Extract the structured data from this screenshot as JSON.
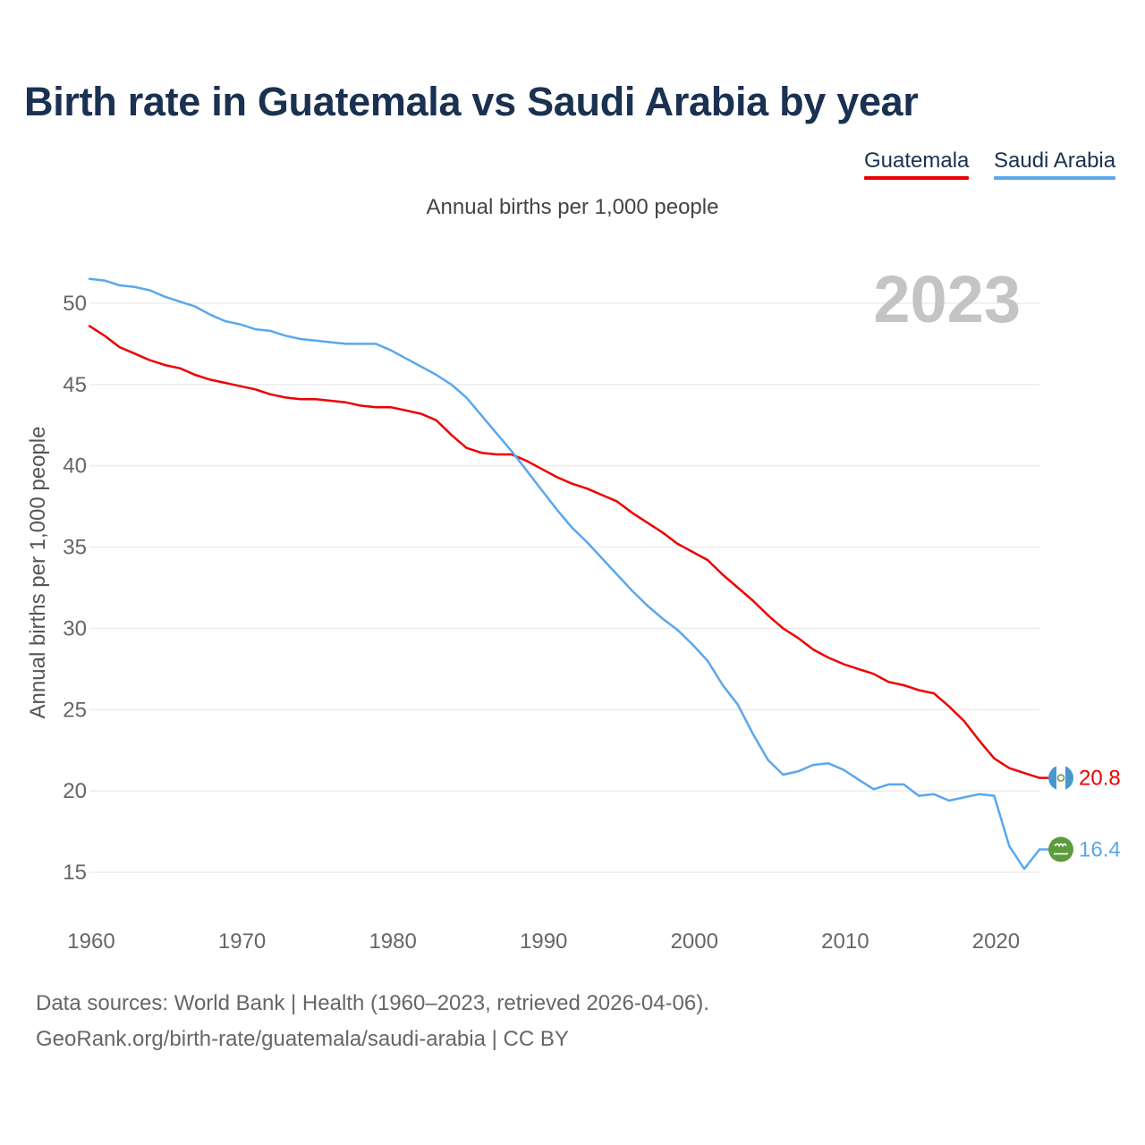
{
  "title": "Birth rate in Guatemala vs Saudi Arabia by year",
  "subtitle": "Annual births per 1,000 people",
  "legend": [
    {
      "name": "Guatemala",
      "color": "#ee0000"
    },
    {
      "name": "Saudi Arabia",
      "color": "#5aa7ec"
    }
  ],
  "footer": {
    "sources": "Data sources: World Bank | Health (1960–2023, retrieved 2026-04-06).",
    "url": "GeoRank.org/birth-rate/guatemala/saudi-arabia | CC BY"
  },
  "chart_data": {
    "type": "line",
    "year_label": "2023",
    "ylabel": "Annual births per 1,000 people",
    "xlabel": "",
    "xlim": [
      1960,
      2023
    ],
    "ylim": [
      12.5,
      52
    ],
    "yticks": [
      15,
      20,
      25,
      30,
      35,
      40,
      45,
      50
    ],
    "xticks": [
      1960,
      1970,
      1980,
      1990,
      2000,
      2010,
      2020
    ],
    "grid": true,
    "legend_position": "top-right",
    "x": [
      1960,
      1961,
      1962,
      1963,
      1964,
      1965,
      1966,
      1967,
      1968,
      1969,
      1970,
      1971,
      1972,
      1973,
      1974,
      1975,
      1976,
      1977,
      1978,
      1979,
      1980,
      1981,
      1982,
      1983,
      1984,
      1985,
      1986,
      1987,
      1988,
      1989,
      1990,
      1991,
      1992,
      1993,
      1994,
      1995,
      1996,
      1997,
      1998,
      1999,
      2000,
      2001,
      2002,
      2003,
      2004,
      2005,
      2006,
      2007,
      2008,
      2009,
      2010,
      2011,
      2012,
      2013,
      2014,
      2015,
      2016,
      2017,
      2018,
      2019,
      2020,
      2021,
      2022,
      2023
    ],
    "series": [
      {
        "name": "Guatemala",
        "color": "#ee0000",
        "end_label": "20.8",
        "values": [
          48.6,
          48.0,
          47.3,
          46.9,
          46.5,
          46.2,
          46.0,
          45.6,
          45.3,
          45.1,
          44.9,
          44.7,
          44.4,
          44.2,
          44.1,
          44.1,
          44.0,
          43.9,
          43.7,
          43.6,
          43.6,
          43.4,
          43.2,
          42.8,
          41.9,
          41.1,
          40.8,
          40.7,
          40.7,
          40.3,
          39.8,
          39.3,
          38.9,
          38.6,
          38.2,
          37.8,
          37.1,
          36.5,
          35.9,
          35.2,
          34.7,
          34.2,
          33.3,
          32.5,
          31.7,
          30.8,
          30.0,
          29.4,
          28.7,
          28.2,
          27.8,
          27.5,
          27.2,
          26.7,
          26.5,
          26.2,
          26.0,
          25.2,
          24.3,
          23.1,
          22.0,
          21.4,
          21.1,
          20.8
        ]
      },
      {
        "name": "Saudi Arabia",
        "color": "#5aa7ec",
        "end_label": "16.4",
        "values": [
          51.5,
          51.4,
          51.1,
          51.0,
          50.8,
          50.4,
          50.1,
          49.8,
          49.3,
          48.9,
          48.7,
          48.4,
          48.3,
          48.0,
          47.8,
          47.7,
          47.6,
          47.5,
          47.5,
          47.5,
          47.1,
          46.6,
          46.1,
          45.6,
          45.0,
          44.2,
          43.1,
          42.0,
          40.9,
          39.7,
          38.5,
          37.3,
          36.2,
          35.3,
          34.3,
          33.3,
          32.3,
          31.4,
          30.6,
          29.9,
          29.0,
          28.0,
          26.5,
          25.3,
          23.5,
          21.9,
          21.0,
          21.2,
          21.6,
          21.7,
          21.3,
          20.7,
          20.1,
          20.4,
          20.4,
          19.7,
          19.8,
          19.4,
          19.6,
          19.8,
          19.7,
          16.6,
          15.2,
          16.4
        ]
      }
    ]
  }
}
